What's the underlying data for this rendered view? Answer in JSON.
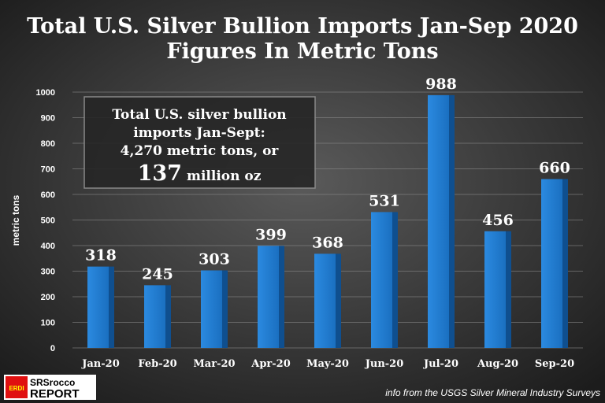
{
  "chart_data": {
    "type": "bar",
    "title": "Total U.S. Silver Bullion Imports Jan-Sep 2020",
    "subtitle": "Figures In Metric Tons",
    "ylabel": "metric tons",
    "xlabel": "",
    "ylim": [
      0,
      1000
    ],
    "yticks": [
      0,
      100,
      200,
      300,
      400,
      500,
      600,
      700,
      800,
      900,
      1000
    ],
    "grid": true,
    "categories": [
      "Jan-20",
      "Feb-20",
      "Mar-20",
      "Apr-20",
      "May-20",
      "Jun-20",
      "Jul-20",
      "Aug-20",
      "Sep-20"
    ],
    "values": [
      318,
      245,
      303,
      399,
      368,
      531,
      988,
      456,
      660
    ],
    "bar_color": "#1e78c8",
    "annotation": {
      "lines": [
        "Total U.S. silver bullion",
        "imports Jan-Sept:",
        "4,270 metric tons, or"
      ],
      "big_number": "137",
      "big_suffix": "million oz"
    }
  },
  "logo": {
    "line1": "SRSrocco",
    "line2": "REPORT",
    "badge": "ERDI"
  },
  "source": "info from the USGS Silver Mineral Industry Surveys"
}
